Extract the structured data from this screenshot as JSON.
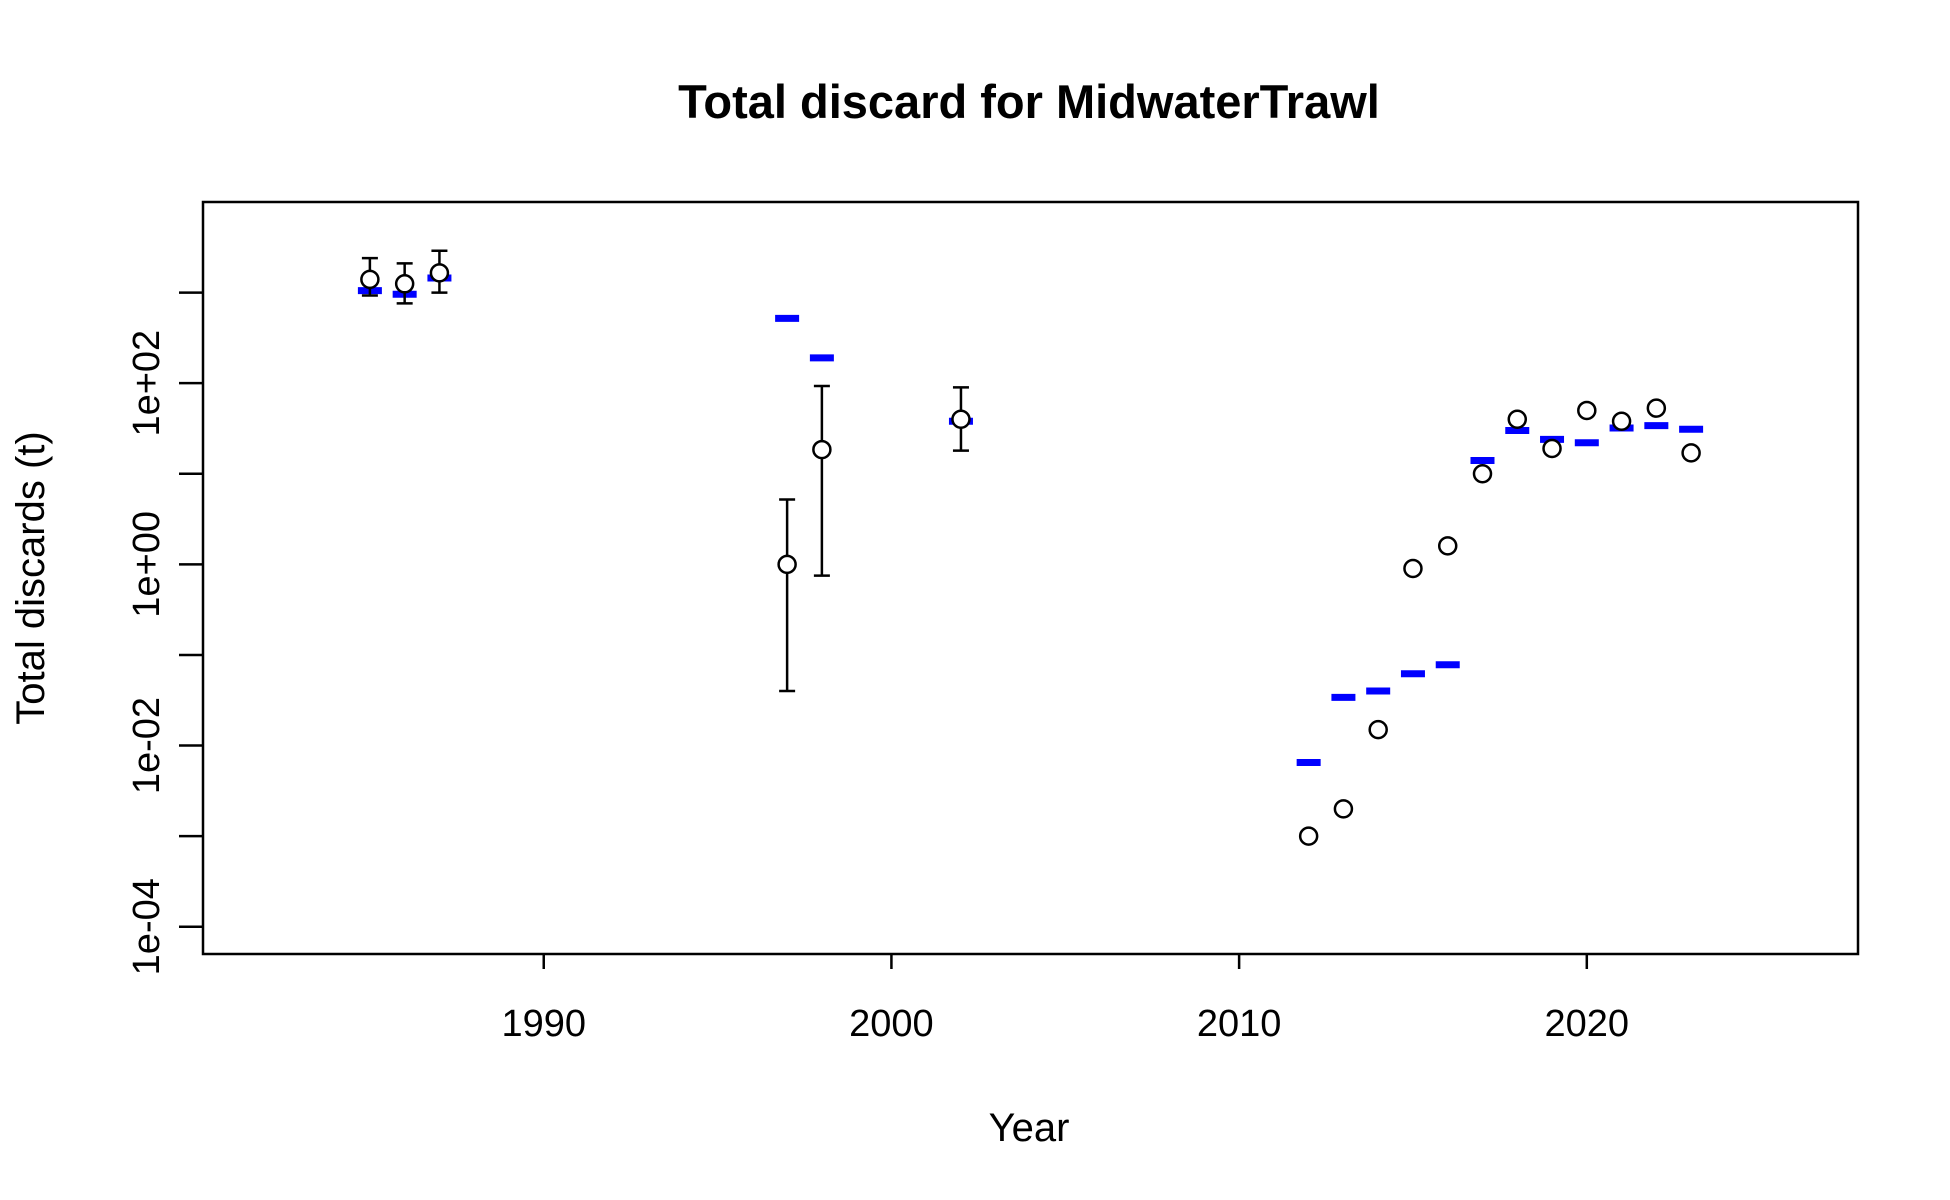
{
  "chart_data": {
    "type": "scatter",
    "title": "Total discard for MidwaterTrawl",
    "xlabel": "Year",
    "ylabel": "Total discards (t)",
    "y_scale": "log",
    "xlim": [
      1980.2,
      2027.8
    ],
    "ylim": [
      5e-05,
      10000
    ],
    "x_ticks": [
      {
        "value": 1990,
        "label": "1990"
      },
      {
        "value": 2000,
        "label": "2000"
      },
      {
        "value": 2010,
        "label": "2010"
      },
      {
        "value": 2020,
        "label": "2020"
      }
    ],
    "y_ticks": [
      {
        "value": 0.0001,
        "label": "1e-04"
      },
      {
        "value": 0.001,
        "label": ""
      },
      {
        "value": 0.01,
        "label": "1e-02"
      },
      {
        "value": 0.1,
        "label": ""
      },
      {
        "value": 1,
        "label": "1e+00"
      },
      {
        "value": 10,
        "label": ""
      },
      {
        "value": 100,
        "label": "1e+02"
      },
      {
        "value": 1000,
        "label": ""
      }
    ],
    "grid": false,
    "series": [
      {
        "kind": "observed",
        "marker": "open-circle",
        "color": "#000000",
        "points": [
          {
            "x": 1985,
            "y": 1400,
            "lower": 930,
            "upper": 2400
          },
          {
            "x": 1986,
            "y": 1250,
            "lower": 760,
            "upper": 2100
          },
          {
            "x": 1987,
            "y": 1650,
            "lower": 1000,
            "upper": 2900
          },
          {
            "x": 1997,
            "y": 1.0,
            "lower": 0.04,
            "upper": 5.2
          },
          {
            "x": 1998,
            "y": 18.5,
            "lower": 0.75,
            "upper": 93
          },
          {
            "x": 2002,
            "y": 40,
            "lower": 18,
            "upper": 90
          },
          {
            "x": 2012,
            "y": 0.001
          },
          {
            "x": 2013,
            "y": 0.002
          },
          {
            "x": 2014,
            "y": 0.015
          },
          {
            "x": 2015,
            "y": 0.9
          },
          {
            "x": 2016,
            "y": 1.6
          },
          {
            "x": 2017,
            "y": 10
          },
          {
            "x": 2018,
            "y": 40
          },
          {
            "x": 2019,
            "y": 19
          },
          {
            "x": 2020,
            "y": 50
          },
          {
            "x": 2021,
            "y": 38
          },
          {
            "x": 2022,
            "y": 53
          },
          {
            "x": 2023,
            "y": 17
          }
        ]
      },
      {
        "kind": "expected",
        "marker": "dash",
        "color": "#0000ff",
        "points": [
          {
            "x": 1985,
            "y": 1050
          },
          {
            "x": 1986,
            "y": 960
          },
          {
            "x": 1987,
            "y": 1450
          },
          {
            "x": 1997,
            "y": 520
          },
          {
            "x": 1998,
            "y": 190
          },
          {
            "x": 2002,
            "y": 38
          },
          {
            "x": 2012,
            "y": 0.0065
          },
          {
            "x": 2013,
            "y": 0.034
          },
          {
            "x": 2014,
            "y": 0.04
          },
          {
            "x": 2015,
            "y": 0.062
          },
          {
            "x": 2016,
            "y": 0.078
          },
          {
            "x": 2017,
            "y": 14
          },
          {
            "x": 2018,
            "y": 30
          },
          {
            "x": 2019,
            "y": 24
          },
          {
            "x": 2020,
            "y": 22
          },
          {
            "x": 2021,
            "y": 32
          },
          {
            "x": 2022,
            "y": 34
          },
          {
            "x": 2023,
            "y": 31
          }
        ]
      }
    ]
  }
}
